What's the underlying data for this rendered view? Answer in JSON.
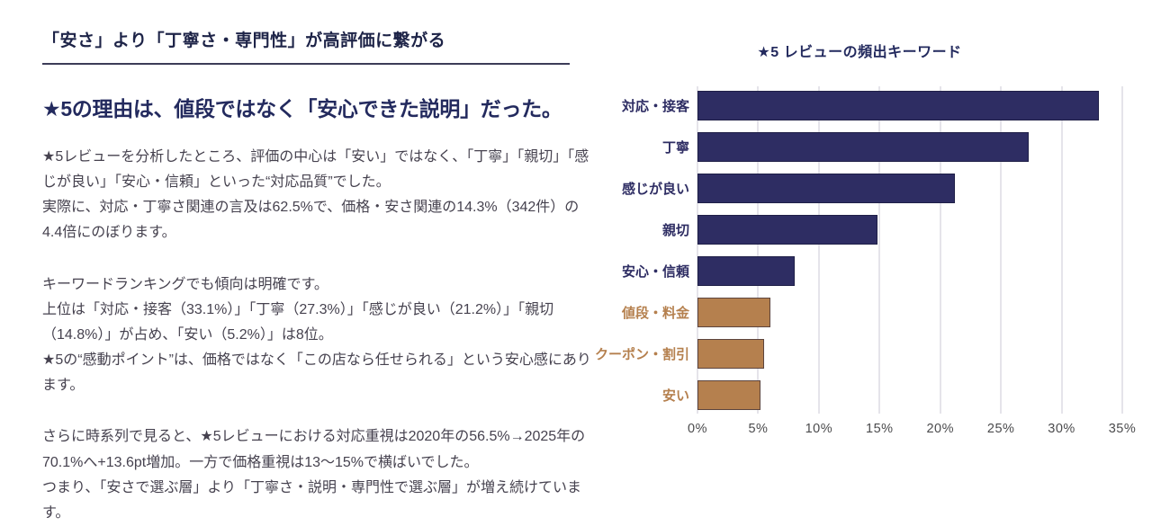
{
  "left": {
    "header": "「安さ」より「丁寧さ・専門性」が高評価に繋がる",
    "title": "★5の理由は、値段ではなく「安心できた説明」だった。",
    "paragraphs": [
      "★5レビューを分析したところ、評価の中心は「安い」ではなく、「丁寧」「親切」「感じが良い」「安心・信頼」といった“対応品質”でした。\n実際に、対応・丁寧さ関連の言及は62.5%で、価格・安さ関連の14.3%（342件）の4.4倍にのぼります。",
      "キーワードランキングでも傾向は明確です。\n上位は「対応・接客（33.1%）」「丁寧（27.3%）」「感じが良い（21.2%）」「親切（14.8%）」が占め、「安い（5.2%）」は8位。\n★5の“感動ポイント”は、価格ではなく「この店なら任せられる」という安心感にあります。",
      "さらに時系列で見ると、★5レビューにおける対応重視は2020年の56.5%→2025年の70.1%へ+13.6pt増加。一方で価格重視は13〜15%で横ばいでした。\nつまり、「安さで選ぶ層」より「丁寧さ・説明・専門性で選ぶ層」が増え続けています。"
    ]
  },
  "chart_data": {
    "type": "bar",
    "orientation": "horizontal",
    "title": "★5 レビューの頻出キーワード",
    "categories": [
      "対応・接客",
      "丁寧",
      "感じが良い",
      "親切",
      "安心・信頼",
      "値段・料金",
      "クーポン・割引",
      "安い"
    ],
    "values": [
      33.1,
      27.3,
      21.2,
      14.8,
      8.0,
      6.0,
      5.5,
      5.2
    ],
    "bar_groups": [
      "navy",
      "navy",
      "navy",
      "navy",
      "navy",
      "brown",
      "brown",
      "brown"
    ],
    "colors": {
      "navy": "#2e2d63",
      "brown": "#b5804e"
    },
    "xlabel": "",
    "ylabel": "",
    "xlim": [
      0,
      35
    ],
    "x_tick_values": [
      0,
      5,
      10,
      15,
      20,
      25,
      30,
      35
    ],
    "x_tick_labels": [
      "0%",
      "5%",
      "10%",
      "15%",
      "20%",
      "25%",
      "30%",
      "35%"
    ],
    "grid": "vertical gridlines on",
    "legend": "none"
  }
}
